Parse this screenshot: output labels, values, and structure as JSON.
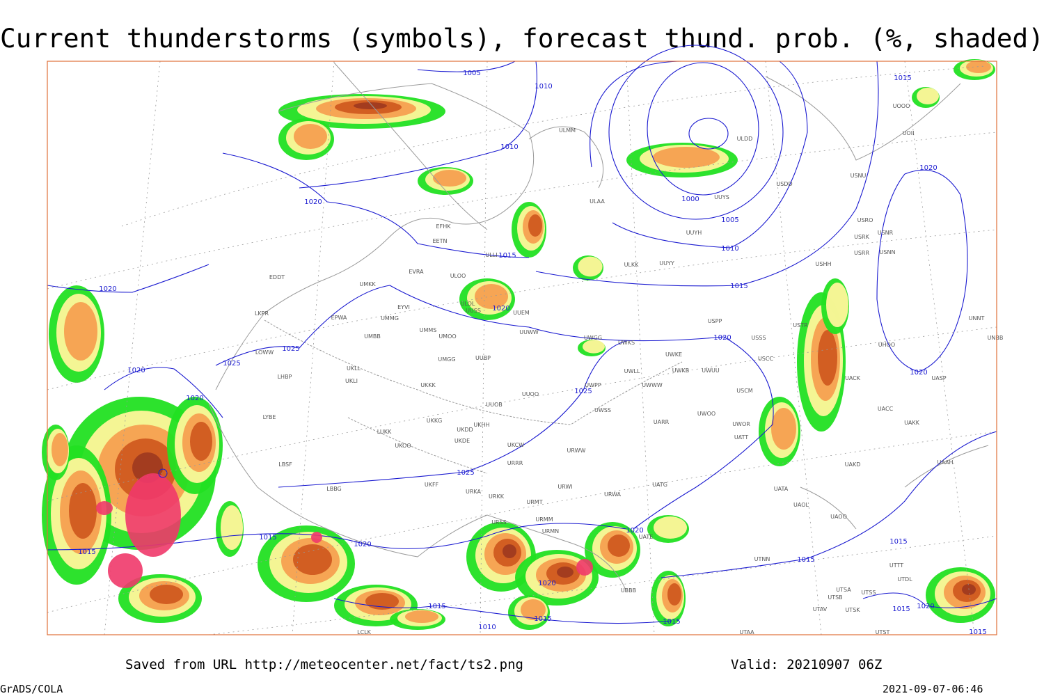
{
  "header": {
    "title": "Current thunderstorms (symbols), forecast thund. prob. (%, shaded)"
  },
  "map": {
    "isobar_labels": [
      1005,
      1010,
      1010,
      1015,
      1020,
      1000,
      1005,
      1010,
      1015,
      1015,
      1020,
      1020,
      1020,
      1025,
      1025,
      1020,
      1020,
      1020,
      1020,
      1025,
      1025,
      1015,
      1020,
      1015,
      1020,
      1015,
      1015,
      1020,
      1015,
      1015,
      1010,
      1015,
      1015,
      1020,
      1015
    ],
    "stations": [
      "ULMM",
      "ULDD",
      "UOII",
      "UOOO",
      "ULAA",
      "UUYS",
      "USDD",
      "USNU",
      "UUYH",
      "USRO",
      "USRK",
      "USNR",
      "USRR",
      "USNN",
      "EFHK",
      "EETN",
      "ULLI",
      "ULKK",
      "UUYY",
      "USHH",
      "EVRA",
      "ULOO",
      "UMKK",
      "EDDT",
      "ULOL",
      "UUEM",
      "EYVI",
      "UMMG",
      "EPWA",
      "UMMS",
      "UMOO",
      "UUSS",
      "UUWW",
      "UWGG",
      "UWKS",
      "USPP",
      "USTR",
      "USSS",
      "UNNT",
      "UNBB",
      "UMBB",
      "LKPR",
      "LOWW",
      "UMGG",
      "UUBP",
      "UWKE",
      "UWKB",
      "UWUU",
      "USCC",
      "UHOO",
      "UKLL",
      "UKLI",
      "LHBP",
      "UWLL",
      "UWWW",
      "UWPP",
      "USCM",
      "UACK",
      "UASP",
      "UKKK",
      "UUOO",
      "UUOB",
      "UWSS",
      "UWOO",
      "UACC",
      "LYBE",
      "UKKG",
      "UKHH",
      "UKDD",
      "UARR",
      "UWOR",
      "UAKK",
      "LUKK",
      "UKOO",
      "UKDE",
      "UKCW",
      "URWW",
      "UATT",
      "URRR",
      "UAKD",
      "UAAH",
      "LBSF",
      "UKFF",
      "UATG",
      "URWI",
      "UATA",
      "LBBG",
      "URKA",
      "URKK",
      "URMT",
      "URWA",
      "UAOL",
      "URSS",
      "URMM",
      "UAOO",
      "URMN",
      "UATE",
      "UTNN",
      "UTSA",
      "UTSB",
      "UTSS",
      "UTAV",
      "UTSK",
      "UBBB",
      "UTTT",
      "UTDL",
      "UTAA",
      "UTST",
      "LCLK"
    ]
  },
  "footer": {
    "saved_from": "Saved from URL http://meteocenter.net/fact/ts2.png",
    "valid": "Valid: 20210907 06Z",
    "software": "GrADS/COLA",
    "timestamp": "2021-09-07-06:46"
  }
}
